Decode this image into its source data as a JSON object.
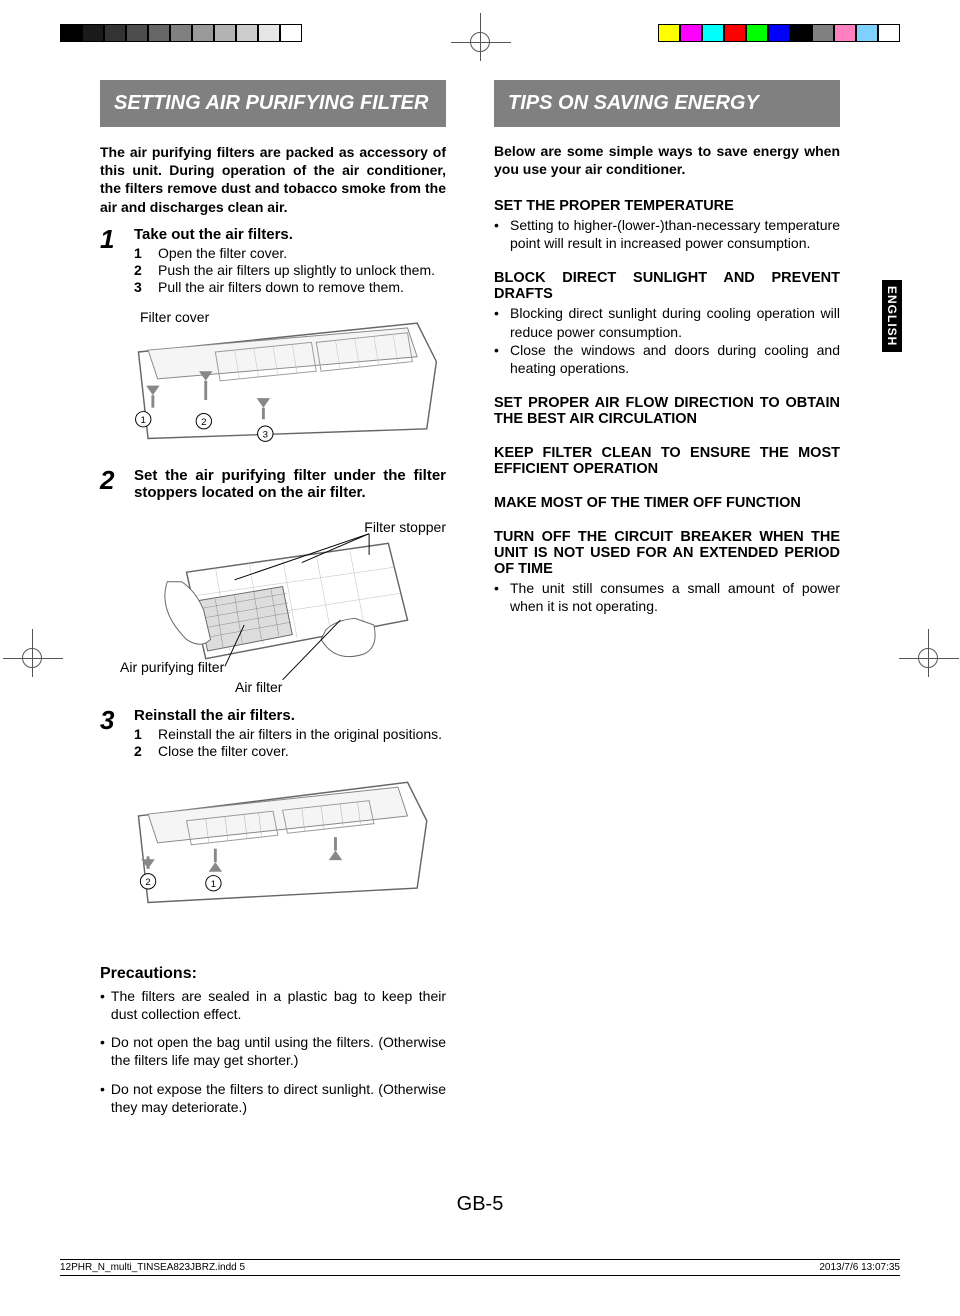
{
  "print": {
    "grayscale": [
      "#000000",
      "#1a1a1a",
      "#333333",
      "#4d4d4d",
      "#666666",
      "#808080",
      "#999999",
      "#b3b3b3",
      "#cccccc",
      "#e6e6e6",
      "#ffffff"
    ],
    "colors": [
      "#ffff00",
      "#ff00ff",
      "#00ffff",
      "#ff0000",
      "#00ff00",
      "#0000ff",
      "#000000",
      "#808080",
      "#ff80c0",
      "#80d0ff",
      "#ffffff"
    ],
    "footer_file": "12PHR_N_multi_TINSEA823JBRZ.indd   5",
    "footer_date": "2013/7/6   13:07:35"
  },
  "tabs": {
    "english": "ENGLISH"
  },
  "page_number": "GB-5",
  "left": {
    "header": "SETTING AIR PURIFYING FILTER",
    "intro": "The air purifying filters are packed as accessory of this unit. During operation of the air conditioner, the filters remove dust and tobacco smoke from the air and discharges clean air.",
    "step1": {
      "num": "1",
      "title": "Take out the air filters.",
      "s1n": "1",
      "s1": "Open the filter cover.",
      "s2n": "2",
      "s2": "Push the air filters up slightly to unlock them.",
      "s3n": "3",
      "s3": "Pull the air filters down to remove them.",
      "label_filter_cover": "Filter cover"
    },
    "step2": {
      "num": "2",
      "title": "Set the air purifying filter under the filter stoppers located on the air filter.",
      "label_stopper": "Filter stopper",
      "label_purifying": "Air purifying filter",
      "label_airfilter": "Air filter"
    },
    "step3": {
      "num": "3",
      "title": "Reinstall the air filters.",
      "s1n": "1",
      "s1": "Reinstall the air filters in the original positions.",
      "s2n": "2",
      "s2": "Close the filter cover."
    },
    "precautions": {
      "title": "Precautions:",
      "b1": "The filters are sealed in a plastic bag to keep their dust collection effect.",
      "b2": "Do not open the bag until using the filters. (Otherwise the filters life may get shorter.)",
      "b3": "Do not expose the filters to direct sunlight. (Otherwise they may deteriorate.)"
    }
  },
  "right": {
    "header": "TIPS ON SAVING ENERGY",
    "intro": "Below are some simple ways to save energy when you use your air conditioner.",
    "tip1_head": "SET THE PROPER  TEMPERATURE",
    "tip1_b1": "Setting to higher-(lower-)than-necessary temperature point will result in increased power consumption.",
    "tip2_head": "BLOCK DIRECT SUNLIGHT AND PREVENT DRAFTS",
    "tip2_b1": "Blocking direct sunlight during cooling operation will reduce power consumption.",
    "tip2_b2": "Close the windows and doors during cooling and heating operations.",
    "tip3_head": "SET PROPER AIR FLOW DIRECTION TO OBTAIN THE BEST AIR CIRCULATION",
    "tip4_head": "KEEP FILTER CLEAN TO ENSURE THE MOST EFFICIENT OPERATION",
    "tip5_head": "MAKE MOST OF THE TIMER OFF FUNCTION",
    "tip6_head": "TURN OFF THE CIRCUIT BREAKER WHEN THE UNIT IS NOT USED FOR AN EXTENDED PERIOD OF TIME",
    "tip6_b1": "The unit still consumes a small amount of power when it is not operating."
  }
}
